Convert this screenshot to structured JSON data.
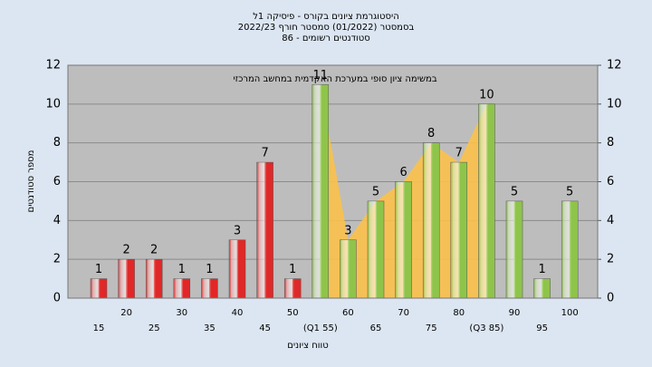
{
  "chart_data": {
    "type": "bar",
    "title": [
      "היסטוגרמת ציונים בקורס - פיסיקה 1ל",
      "בסמסטר  (01/2022)  סמסטר חורף 2022/23",
      "סטודנטים רשומים - 86"
    ],
    "subtitle": "במשימה  ציון סופי במערכת האקדמית במחשב המרכזי",
    "x_label": "טווח ציונים",
    "y_label": "מספר סטודנטים",
    "categories": [
      "15",
      "20",
      "25",
      "30",
      "35",
      "40",
      "45",
      "50",
      "(Q1 55)",
      "60",
      "65",
      "70",
      "75",
      "80",
      "(Q3 85)",
      "90",
      "95",
      "100"
    ],
    "values": [
      1,
      2,
      2,
      1,
      1,
      3,
      7,
      1,
      11,
      3,
      5,
      6,
      8,
      7,
      10,
      5,
      1,
      5
    ],
    "colors": [
      "#e02828",
      "#e02828",
      "#e02828",
      "#e02828",
      "#e02828",
      "#e02828",
      "#e02828",
      "#e02828",
      "#8fc44a",
      "#8fc44a",
      "#8fc44a",
      "#8fc44a",
      "#8fc44a",
      "#8fc44a",
      "#8fc44a",
      "#8fc44a",
      "#8fc44a",
      "#8fc44a"
    ],
    "range_color": "#fbc14a",
    "ylim": [
      0,
      12
    ],
    "yticks": [
      0,
      2,
      4,
      6,
      8,
      10,
      12
    ],
    "y2lim": [
      0,
      12
    ],
    "y2ticks": [
      0,
      2,
      4,
      6,
      8,
      10,
      12
    ],
    "grid": true
  }
}
